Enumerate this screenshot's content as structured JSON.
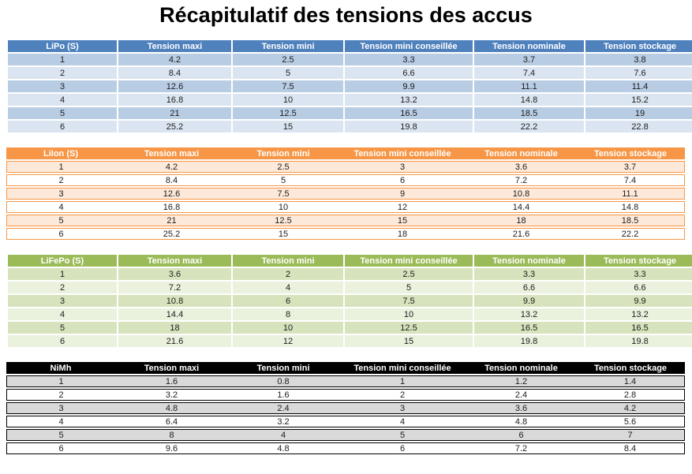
{
  "title": "Récapitulatif des tensions des accus",
  "columns": [
    "Tension maxi",
    "Tension mini",
    "Tension mini conseillée",
    "Tension nominale",
    "Tension stockage"
  ],
  "tables": [
    {
      "label": "LiPo (S)",
      "theme": {
        "header_bg": "#4F81BD",
        "row_odd": "#B8CCE4",
        "row_even": "#DBE5F1",
        "border": "#FFFFFF"
      },
      "rows": [
        [
          "1",
          "4.2",
          "2.5",
          "3.3",
          "3.7",
          "3.8"
        ],
        [
          "2",
          "8.4",
          "5",
          "6.6",
          "7.4",
          "7.6"
        ],
        [
          "3",
          "12.6",
          "7.5",
          "9.9",
          "11.1",
          "11.4"
        ],
        [
          "4",
          "16.8",
          "10",
          "13.2",
          "14.8",
          "15.2"
        ],
        [
          "5",
          "21",
          "12.5",
          "16.5",
          "18.5",
          "19"
        ],
        [
          "6",
          "25.2",
          "15",
          "19.8",
          "22.2",
          "22.8"
        ]
      ]
    },
    {
      "label": "LiIon (S)",
      "theme": {
        "header_bg": "#F79646",
        "row_odd": "#FDE9D9",
        "row_even": "#FFFFFF",
        "border": "#F79646"
      },
      "rows": [
        [
          "1",
          "4.2",
          "2.5",
          "3",
          "3.6",
          "3.7"
        ],
        [
          "2",
          "8.4",
          "5",
          "6",
          "7.2",
          "7.4"
        ],
        [
          "3",
          "12.6",
          "7.5",
          "9",
          "10.8",
          "11.1"
        ],
        [
          "4",
          "16.8",
          "10",
          "12",
          "14.4",
          "14.8"
        ],
        [
          "5",
          "21",
          "12.5",
          "15",
          "18",
          "18.5"
        ],
        [
          "6",
          "25.2",
          "15",
          "18",
          "21.6",
          "22.2"
        ]
      ]
    },
    {
      "label": "LiFePo (S)",
      "theme": {
        "header_bg": "#9BBB59",
        "row_odd": "#D6E3BC",
        "row_even": "#EAF1DD",
        "border": "#FFFFFF"
      },
      "rows": [
        [
          "1",
          "3.6",
          "2",
          "2.5",
          "3.3",
          "3.3"
        ],
        [
          "2",
          "7.2",
          "4",
          "5",
          "6.6",
          "6.6"
        ],
        [
          "3",
          "10.8",
          "6",
          "7.5",
          "9.9",
          "9.9"
        ],
        [
          "4",
          "14.4",
          "8",
          "10",
          "13.2",
          "13.2"
        ],
        [
          "5",
          "18",
          "10",
          "12.5",
          "16.5",
          "16.5"
        ],
        [
          "6",
          "21.6",
          "12",
          "15",
          "19.8",
          "19.8"
        ]
      ]
    },
    {
      "label": "NiMh",
      "theme": {
        "header_bg": "#000000",
        "row_odd": "#D9D9D9",
        "row_even": "#FFFFFF",
        "border": "#000000"
      },
      "rows": [
        [
          "1",
          "1.6",
          "0.8",
          "1",
          "1.2",
          "1.4"
        ],
        [
          "2",
          "3.2",
          "1.6",
          "2",
          "2.4",
          "2.8"
        ],
        [
          "3",
          "4.8",
          "2.4",
          "3",
          "3.6",
          "4.2"
        ],
        [
          "4",
          "6.4",
          "3.2",
          "4",
          "4.8",
          "5.6"
        ],
        [
          "5",
          "8",
          "4",
          "5",
          "6",
          "7"
        ],
        [
          "6",
          "9.6",
          "4.8",
          "6",
          "7.2",
          "8.4"
        ]
      ]
    }
  ]
}
